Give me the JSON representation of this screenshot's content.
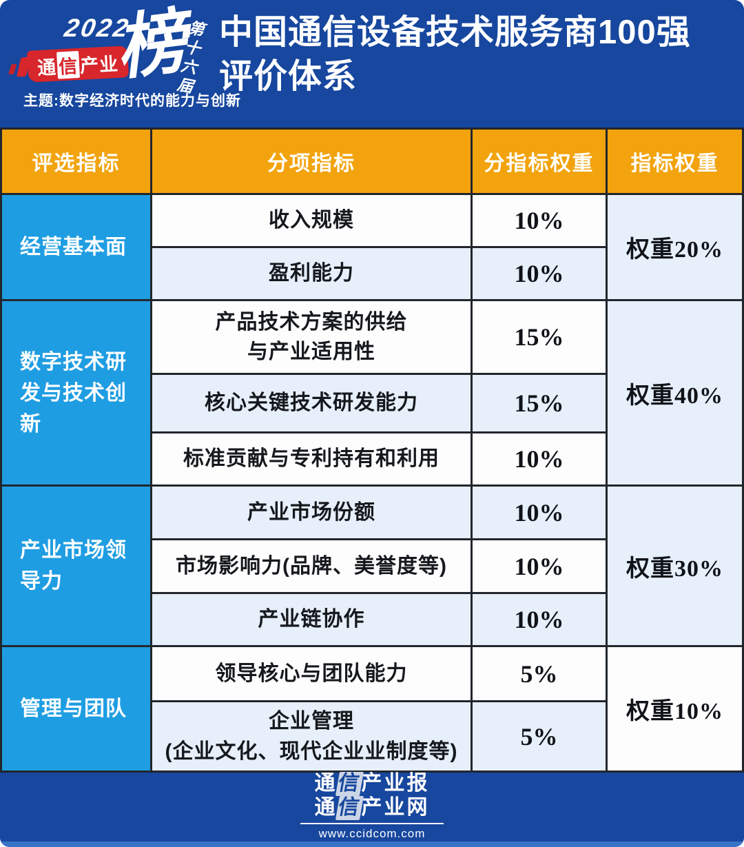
{
  "logo": {
    "year": "2022",
    "brand": {
      "pre": "通",
      "mark": "信",
      "post": "产业"
    },
    "bang": "榜",
    "edition": "第十六届",
    "theme": "主题:数字经济时代的能力与创新"
  },
  "title": {
    "line1": "中国通信设备技术服务商100强",
    "line2": "评价体系"
  },
  "table": {
    "headers": [
      "评选指标",
      "分项指标",
      "分指标权重",
      "指标权重"
    ],
    "groups": [
      {
        "label": "经营基本面",
        "weight": "权重20%",
        "rows": [
          {
            "name": "收入规模",
            "pct": "10%"
          },
          {
            "name": "盈利能力",
            "pct": "10%"
          }
        ]
      },
      {
        "label": "数字技术研发与技术创新",
        "weight": "权重40%",
        "rows": [
          {
            "name": "产品技术方案的供给",
            "name2": "与产业适用性",
            "pct": "15%"
          },
          {
            "name": "核心关键技术研发能力",
            "pct": "15%"
          },
          {
            "name": "标准贡献与专利持有和利用",
            "pct": "10%"
          }
        ]
      },
      {
        "label": "产业市场领导力",
        "weight": "权重30%",
        "rows": [
          {
            "name": "产业市场份额",
            "pct": "10%"
          },
          {
            "name": "市场影响力(品牌、美誉度等)",
            "pct": "10%"
          },
          {
            "name": "产业链协作",
            "pct": "10%"
          }
        ]
      },
      {
        "label": "管理与团队",
        "weight": "权重10%",
        "rows": [
          {
            "name": "领导核心与团队能力",
            "pct": "5%"
          },
          {
            "name": "企业管理",
            "name2": "(企业文化、现代企业业制度等)",
            "pct": "5%"
          }
        ]
      }
    ]
  },
  "footer": {
    "brand1": {
      "pre": "通",
      "mark": "信",
      "post": "产业报"
    },
    "brand2": {
      "pre": "通",
      "mark": "信",
      "post": "产业网"
    },
    "url": "www.ccidcom.com"
  }
}
